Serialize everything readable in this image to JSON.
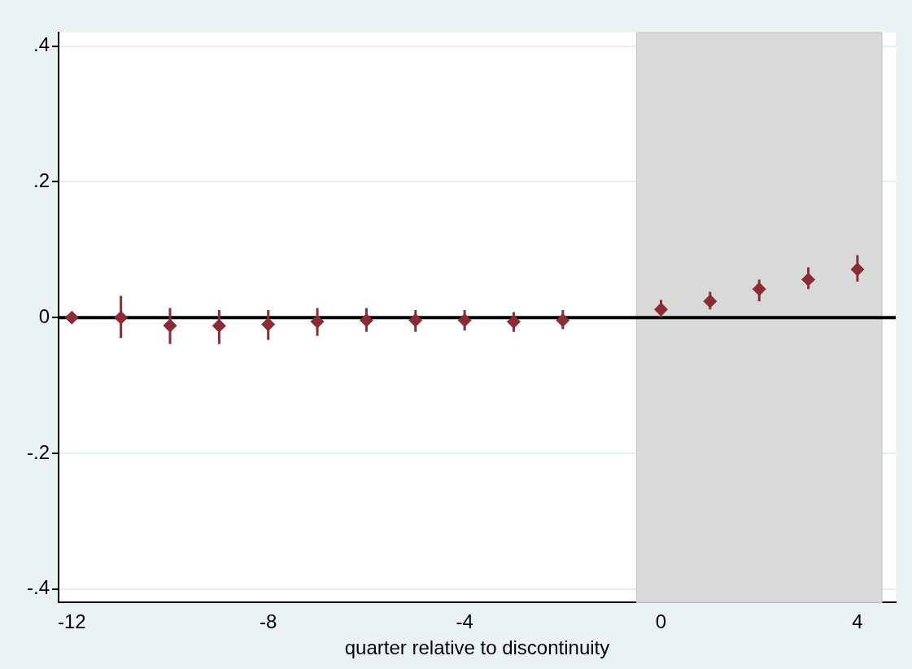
{
  "chart_data": {
    "type": "scatter",
    "xlabel": "quarter relative to discontinuity",
    "x": [
      -12,
      -11,
      -10,
      -9,
      -8,
      -7,
      -6,
      -5,
      -4,
      -3,
      -2,
      0,
      1,
      2,
      3,
      4
    ],
    "series": [
      {
        "color": "#8b2c35",
        "values": [
          0,
          0,
          -0.012,
          -0.012,
          -0.01,
          -0.006,
          -0.004,
          -0.004,
          -0.004,
          -0.006,
          -0.004,
          0.012,
          0.024,
          0.042,
          0.056,
          0.071
        ],
        "errors": [
          null,
          [
            -0.03,
            0.032
          ],
          [
            -0.039,
            0.014
          ],
          [
            -0.039,
            0.011
          ],
          [
            -0.033,
            0.011
          ],
          [
            -0.027,
            0.014
          ],
          [
            -0.021,
            0.014
          ],
          [
            -0.021,
            0.011
          ],
          [
            -0.019,
            0.011
          ],
          [
            -0.021,
            0.008
          ],
          [
            -0.017,
            0.011
          ],
          [
            0,
            0.026
          ],
          [
            0.012,
            0.038
          ],
          [
            0.024,
            0.056
          ],
          [
            0.042,
            0.074
          ],
          [
            0.053,
            0.092
          ]
        ]
      }
    ],
    "xlim": [
      -12.27,
      4.78
    ],
    "xticks": [
      -12,
      -8,
      -4,
      0,
      4
    ],
    "ylim": [
      -0.42,
      0.42
    ],
    "yticks": [
      {
        "value": -0.4,
        "label": "-.4"
      },
      {
        "value": -0.2,
        "label": "-.2"
      },
      {
        "value": 0,
        "label": "0"
      },
      {
        "value": 0.2,
        "label": ".2"
      },
      {
        "value": 0.4,
        "label": ".4"
      }
    ],
    "grid": "y",
    "marker": "diamond",
    "legend": false,
    "ref_lines": [
      {
        "axis": "y",
        "value": 0,
        "color": "#000000"
      }
    ],
    "bands": [
      {
        "axis": "x",
        "from": -0.5,
        "to": 4.5,
        "color": "#d9d9d9"
      }
    ]
  }
}
